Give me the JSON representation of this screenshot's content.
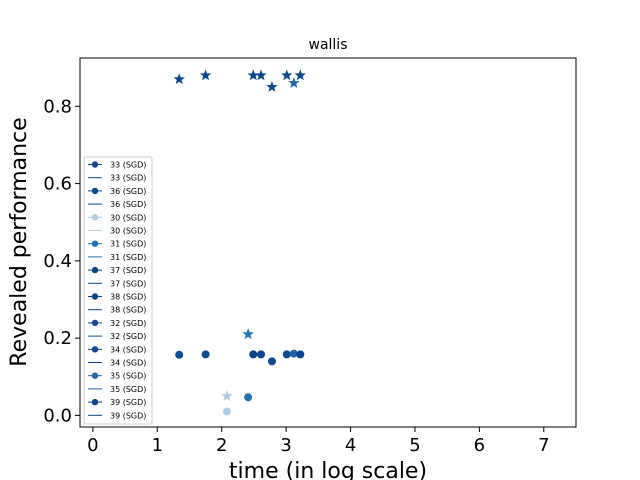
{
  "chart_data": {
    "type": "scatter",
    "title": "wallis",
    "xlabel": "time (in log scale)",
    "ylabel": "Revealed performance",
    "xlim": [
      -0.2,
      7.5
    ],
    "ylim": [
      -0.03,
      0.925
    ],
    "xticks": [
      0,
      1,
      2,
      3,
      4,
      5,
      6,
      7
    ],
    "yticks": [
      0.0,
      0.2,
      0.4,
      0.6,
      0.8
    ],
    "xtick_labels": [
      "0",
      "1",
      "2",
      "3",
      "4",
      "5",
      "6",
      "7"
    ],
    "ytick_labels": [
      "0.0",
      "0.2",
      "0.4",
      "0.6",
      "0.8"
    ],
    "grid": false,
    "legend_position": "center-left",
    "legend": [
      {
        "label": "33 (SGD)",
        "kind": "marker",
        "color": "#0b4a8f"
      },
      {
        "label": "33 (SGD)",
        "kind": "line",
        "color": "#0b4a8f"
      },
      {
        "label": "36 (SGD)",
        "kind": "marker",
        "color": "#0b4a8f"
      },
      {
        "label": "36 (SGD)",
        "kind": "line",
        "color": "#0b4a8f"
      },
      {
        "label": "30 (SGD)",
        "kind": "marker",
        "color": "#b3cde3"
      },
      {
        "label": "30 (SGD)",
        "kind": "line",
        "color": "#b3cde3"
      },
      {
        "label": "31 (SGD)",
        "kind": "marker",
        "color": "#2070b4"
      },
      {
        "label": "31 (SGD)",
        "kind": "line",
        "color": "#2070b4"
      },
      {
        "label": "37 (SGD)",
        "kind": "marker",
        "color": "#08458a"
      },
      {
        "label": "37 (SGD)",
        "kind": "line",
        "color": "#08458a"
      },
      {
        "label": "38 (SGD)",
        "kind": "marker",
        "color": "#08458a"
      },
      {
        "label": "38 (SGD)",
        "kind": "line",
        "color": "#08458a"
      },
      {
        "label": "32 (SGD)",
        "kind": "marker",
        "color": "#0b4a8f"
      },
      {
        "label": "32 (SGD)",
        "kind": "line",
        "color": "#0b4a8f"
      },
      {
        "label": "34 (SGD)",
        "kind": "marker",
        "color": "#0b4a8f"
      },
      {
        "label": "34 (SGD)",
        "kind": "line",
        "color": "#0b4a8f"
      },
      {
        "label": "35 (SGD)",
        "kind": "marker",
        "color": "#1f63a8"
      },
      {
        "label": "35 (SGD)",
        "kind": "line",
        "color": "#1f63a8"
      },
      {
        "label": "39 (SGD)",
        "kind": "marker",
        "color": "#08458a"
      },
      {
        "label": "39 (SGD)",
        "kind": "line",
        "color": "#08458a"
      }
    ],
    "series": [
      {
        "color": "#0b4a8f",
        "circle": [
          1.34,
          0.157
        ],
        "star": [
          1.34,
          0.87
        ]
      },
      {
        "color": "#0b4a8f",
        "circle": [
          1.75,
          0.158
        ],
        "star": [
          1.75,
          0.88
        ]
      },
      {
        "color": "#b3cde3",
        "circle": [
          2.08,
          0.01
        ],
        "star": [
          2.08,
          0.05
        ]
      },
      {
        "color": "#2070b4",
        "circle": [
          2.41,
          0.047
        ],
        "star": [
          2.41,
          0.21
        ]
      },
      {
        "color": "#08458a",
        "circle": [
          2.49,
          0.158
        ],
        "star": [
          2.49,
          0.88
        ]
      },
      {
        "color": "#08458a",
        "circle": [
          2.61,
          0.158
        ],
        "star": [
          2.61,
          0.88
        ]
      },
      {
        "color": "#0b4a8f",
        "circle": [
          2.78,
          0.14
        ],
        "star": [
          2.78,
          0.85
        ]
      },
      {
        "color": "#0b4a8f",
        "circle": [
          3.01,
          0.158
        ],
        "star": [
          3.01,
          0.88
        ]
      },
      {
        "color": "#1f63a8",
        "circle": [
          3.12,
          0.16
        ],
        "star": [
          3.12,
          0.86
        ]
      },
      {
        "color": "#08458a",
        "circle": [
          3.22,
          0.158
        ],
        "star": [
          3.22,
          0.88
        ]
      }
    ]
  }
}
